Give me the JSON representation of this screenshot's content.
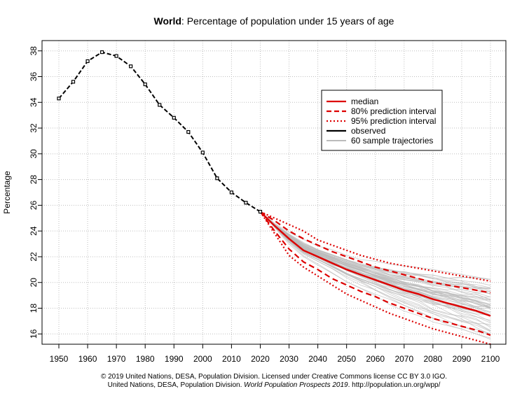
{
  "chart_data": {
    "type": "line",
    "title_bold": "World",
    "title_rest": ": Percentage of population under 15 years of age",
    "xlabel": "",
    "ylabel": "Percentage",
    "xlim": [
      1950,
      2100
    ],
    "ylim": [
      15.2,
      38.8
    ],
    "x_ticks": [
      1950,
      1960,
      1970,
      1980,
      1990,
      2000,
      2010,
      2020,
      2030,
      2040,
      2050,
      2060,
      2070,
      2080,
      2090,
      2100
    ],
    "y_ticks": [
      16,
      18,
      20,
      22,
      24,
      26,
      28,
      30,
      32,
      34,
      36,
      38
    ],
    "grid": true,
    "legend_position": "top-right",
    "legend": [
      {
        "key": "median",
        "label": "median"
      },
      {
        "key": "pi80",
        "label": "80% prediction interval"
      },
      {
        "key": "pi95",
        "label": "95% prediction interval"
      },
      {
        "key": "observed",
        "label": "observed"
      },
      {
        "key": "trajectories",
        "label": "60 sample trajectories"
      }
    ],
    "colors": {
      "median": "#dd0000",
      "observed": "#000000",
      "trajectories": "#bbbbbb",
      "grid": "#bfbfbf"
    },
    "series": {
      "observed": {
        "x": [
          1950,
          1955,
          1960,
          1965,
          1970,
          1975,
          1980,
          1985,
          1990,
          1995,
          2000,
          2005,
          2010,
          2015,
          2020
        ],
        "y": [
          34.3,
          35.6,
          37.2,
          37.9,
          37.6,
          36.8,
          35.4,
          33.8,
          32.8,
          31.7,
          30.1,
          28.1,
          27.0,
          26.2,
          25.5
        ]
      },
      "median": {
        "x": [
          2020,
          2025,
          2030,
          2035,
          2040,
          2045,
          2050,
          2055,
          2060,
          2065,
          2070,
          2075,
          2080,
          2085,
          2090,
          2095,
          2100
        ],
        "y": [
          25.5,
          24.4,
          23.4,
          22.5,
          22.0,
          21.5,
          21.0,
          20.6,
          20.2,
          19.8,
          19.4,
          19.1,
          18.7,
          18.4,
          18.1,
          17.8,
          17.4
        ]
      },
      "pi80_upper": {
        "x": [
          2020,
          2025,
          2030,
          2035,
          2040,
          2045,
          2050,
          2055,
          2060,
          2065,
          2070,
          2075,
          2080,
          2085,
          2090,
          2095,
          2100
        ],
        "y": [
          25.5,
          24.8,
          24.0,
          23.4,
          22.9,
          22.4,
          22.0,
          21.6,
          21.2,
          20.9,
          20.6,
          20.3,
          20.0,
          19.8,
          19.6,
          19.4,
          19.2
        ]
      },
      "pi80_lower": {
        "x": [
          2020,
          2025,
          2030,
          2035,
          2040,
          2045,
          2050,
          2055,
          2060,
          2065,
          2070,
          2075,
          2080,
          2085,
          2090,
          2095,
          2100
        ],
        "y": [
          25.5,
          24.0,
          22.6,
          21.6,
          21.0,
          20.3,
          19.8,
          19.3,
          18.9,
          18.4,
          18.0,
          17.6,
          17.2,
          16.9,
          16.6,
          16.3,
          15.9
        ]
      },
      "pi95_upper": {
        "x": [
          2020,
          2025,
          2030,
          2035,
          2040,
          2045,
          2050,
          2055,
          2060,
          2065,
          2070,
          2075,
          2080,
          2085,
          2090,
          2095,
          2100
        ],
        "y": [
          25.5,
          25.0,
          24.5,
          24.0,
          23.3,
          22.9,
          22.5,
          22.1,
          21.8,
          21.5,
          21.3,
          21.1,
          20.9,
          20.7,
          20.5,
          20.3,
          20.1
        ]
      },
      "pi95_lower": {
        "x": [
          2020,
          2025,
          2030,
          2035,
          2040,
          2045,
          2050,
          2055,
          2060,
          2065,
          2070,
          2075,
          2080,
          2085,
          2090,
          2095,
          2100
        ],
        "y": [
          25.5,
          23.8,
          22.1,
          21.2,
          20.5,
          19.8,
          19.1,
          18.6,
          18.1,
          17.6,
          17.2,
          16.8,
          16.4,
          16.1,
          15.8,
          15.5,
          15.2
        ]
      }
    },
    "trajectory_count": 60
  },
  "footer": {
    "line1": "© 2019 United Nations, DESA, Population Division. Licensed under Creative Commons license CC BY 3.0 IGO.",
    "line2_prefix": "United Nations, DESA, Population Division. ",
    "line2_italic": "World Population Prospects 2019",
    "line2_suffix": ". http://population.un.org/wpp/"
  }
}
